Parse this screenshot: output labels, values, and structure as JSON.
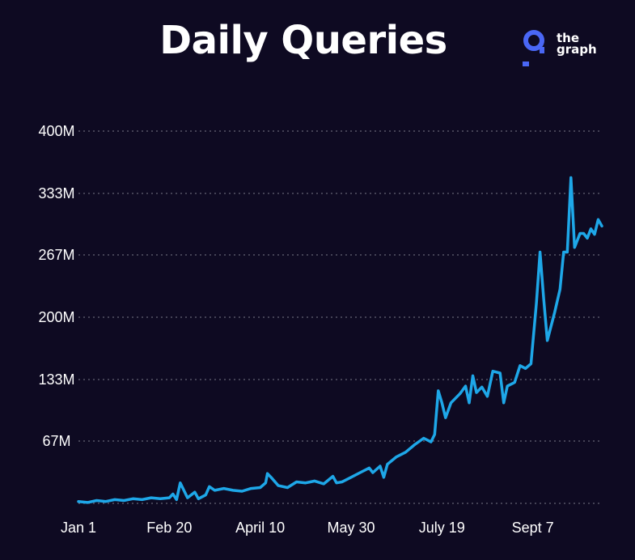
{
  "header": {
    "title": "Daily Queries"
  },
  "logo": {
    "line1": "the",
    "line2": "graph",
    "icon": "the-graph-logo-icon",
    "color": "#4a67f5"
  },
  "colors": {
    "background": "#0e0a22",
    "line": "#1ea7e8",
    "grid": "#7a7a88",
    "text": "#ffffff"
  },
  "chart_data": {
    "type": "line",
    "title": "Daily Queries",
    "xlabel": "",
    "ylabel": "",
    "grid": true,
    "legend": "none",
    "xlim": [
      "Jan 1",
      "Sept 28"
    ],
    "ylim": [
      0,
      400
    ],
    "y_unit": "M",
    "x_ticks": [
      "Jan 1",
      "Feb 20",
      "April 10",
      "May 30",
      "July 19",
      "Sept 7"
    ],
    "y_ticks": [
      "400M",
      "333M",
      "267M",
      "200M",
      "133M",
      "67M"
    ],
    "y_tick_values": [
      400,
      333,
      267,
      200,
      133,
      67
    ],
    "series": [
      {
        "values": [
          [
            0,
            2
          ],
          [
            5,
            1
          ],
          [
            10,
            3
          ],
          [
            15,
            2
          ],
          [
            20,
            4
          ],
          [
            25,
            3
          ],
          [
            30,
            5
          ],
          [
            35,
            4
          ],
          [
            40,
            6
          ],
          [
            45,
            5
          ],
          [
            50,
            6
          ],
          [
            52,
            10
          ],
          [
            54,
            4
          ],
          [
            56,
            22
          ],
          [
            58,
            14
          ],
          [
            60,
            6
          ],
          [
            64,
            12
          ],
          [
            66,
            5
          ],
          [
            70,
            9
          ],
          [
            72,
            18
          ],
          [
            75,
            14
          ],
          [
            80,
            16
          ],
          [
            85,
            14
          ],
          [
            90,
            13
          ],
          [
            95,
            16
          ],
          [
            100,
            17
          ],
          [
            103,
            22
          ],
          [
            104,
            32
          ],
          [
            106,
            28
          ],
          [
            110,
            19
          ],
          [
            115,
            17
          ],
          [
            120,
            23
          ],
          [
            125,
            22
          ],
          [
            130,
            24
          ],
          [
            135,
            21
          ],
          [
            140,
            29
          ],
          [
            142,
            22
          ],
          [
            145,
            23
          ],
          [
            150,
            28
          ],
          [
            155,
            33
          ],
          [
            160,
            38
          ],
          [
            162,
            33
          ],
          [
            166,
            40
          ],
          [
            168,
            28
          ],
          [
            170,
            42
          ],
          [
            175,
            50
          ],
          [
            180,
            55
          ],
          [
            185,
            63
          ],
          [
            190,
            70
          ],
          [
            194,
            66
          ],
          [
            196,
            74
          ],
          [
            198,
            121
          ],
          [
            200,
            108
          ],
          [
            202,
            92
          ],
          [
            205,
            108
          ],
          [
            210,
            118
          ],
          [
            213,
            126
          ],
          [
            215,
            108
          ],
          [
            217,
            137
          ],
          [
            219,
            119
          ],
          [
            222,
            125
          ],
          [
            225,
            115
          ],
          [
            228,
            142
          ],
          [
            232,
            140
          ],
          [
            234,
            108
          ],
          [
            236,
            126
          ],
          [
            240,
            130
          ],
          [
            243,
            148
          ],
          [
            246,
            145
          ],
          [
            249,
            150
          ],
          [
            252,
            215
          ],
          [
            254,
            270
          ],
          [
            256,
            220
          ],
          [
            258,
            175
          ],
          [
            260,
            190
          ],
          [
            262,
            205
          ],
          [
            265,
            230
          ],
          [
            267,
            270
          ],
          [
            269,
            270
          ],
          [
            271,
            350
          ],
          [
            273,
            275
          ],
          [
            276,
            290
          ],
          [
            278,
            290
          ],
          [
            280,
            285
          ],
          [
            282,
            295
          ],
          [
            284,
            289
          ],
          [
            286,
            305
          ],
          [
            288,
            298
          ]
        ]
      }
    ]
  }
}
